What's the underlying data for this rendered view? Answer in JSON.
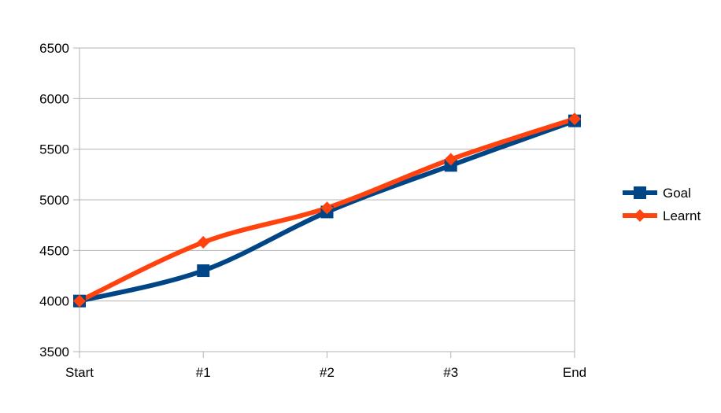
{
  "chart_data": {
    "type": "line",
    "categories": [
      "Start",
      "#1",
      "#2",
      "#3",
      "End"
    ],
    "series": [
      {
        "name": "Goal",
        "color": "#004586",
        "marker": "square",
        "values": [
          4000,
          4300,
          4880,
          5340,
          5780
        ]
      },
      {
        "name": "Learnt",
        "color": "#ff420e",
        "marker": "diamond",
        "values": [
          4000,
          4580,
          4920,
          5400,
          5800
        ]
      }
    ],
    "ylim": [
      3500,
      6500
    ],
    "yticks": [
      3500,
      4000,
      4500,
      5000,
      5500,
      6000,
      6500
    ],
    "grid": true,
    "legend": "right",
    "smooth": true
  }
}
